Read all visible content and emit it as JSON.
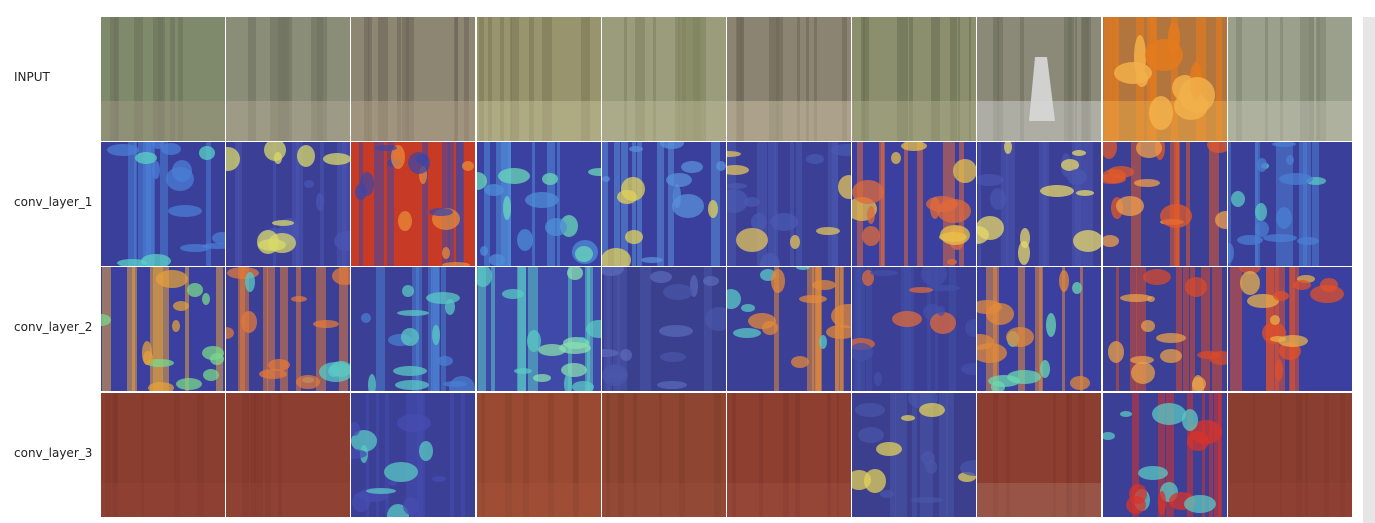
{
  "rows": [
    {
      "label": "INPUT",
      "key": "input"
    },
    {
      "label": "conv_layer_1",
      "key": "conv1"
    },
    {
      "label": "conv_layer_2",
      "key": "conv2"
    },
    {
      "label": "conv_layer_3",
      "key": "conv3"
    }
  ],
  "columns": 10,
  "tiles": {
    "input": [
      {
        "scene": "forest-trunks",
        "palette": [
          "#7f8a6c",
          "#6b735a",
          "#a39a86"
        ]
      },
      {
        "scene": "forest-path-bench",
        "palette": [
          "#8a8e79",
          "#6e725f",
          "#b3ab95"
        ]
      },
      {
        "scene": "dense-pines-sunrays",
        "palette": [
          "#8d8673",
          "#6e6658",
          "#b8a78c"
        ]
      },
      {
        "scene": "forest-light-path",
        "palette": [
          "#98956e",
          "#7b7a55",
          "#c9c39a"
        ]
      },
      {
        "scene": "mossy-forest",
        "palette": [
          "#9a9c7b",
          "#7f845e",
          "#c0bc9b"
        ]
      },
      {
        "scene": "tall-trees-looking-up",
        "palette": [
          "#8c8472",
          "#6f6758",
          "#d2c7ad"
        ]
      },
      {
        "scene": "swamp-canoe",
        "palette": [
          "#8b8f6e",
          "#6a7053",
          "#b0ae8a"
        ]
      },
      {
        "scene": "ghost-figure",
        "palette": [
          "#8b8a78",
          "#6e6e5e",
          "#d8d8d8"
        ]
      },
      {
        "scene": "forest-fire",
        "palette": [
          "#b3753e",
          "#e47a1c",
          "#f2b04a"
        ]
      },
      {
        "scene": "bright-trunks",
        "palette": [
          "#9aa08b",
          "#7d8470",
          "#c8c6b5"
        ]
      }
    ],
    "conv1": [
      {
        "scene": "heatmap",
        "palette": [
          "#3a3f9a",
          "#4b7fd6",
          "#5ad1c4"
        ]
      },
      {
        "scene": "heatmap",
        "palette": [
          "#3b3f96",
          "#4a56b3",
          "#d9d96a"
        ]
      },
      {
        "scene": "heatmap",
        "palette": [
          "#c73a26",
          "#3e45a6",
          "#e98a3a"
        ]
      },
      {
        "scene": "heatmap",
        "palette": [
          "#3b41a0",
          "#4f8ed8",
          "#6ad8b8"
        ]
      },
      {
        "scene": "heatmap",
        "palette": [
          "#3a3f9e",
          "#5a90da",
          "#e0d25a"
        ]
      },
      {
        "scene": "heatmap",
        "palette": [
          "#3b3f96",
          "#4a5ab0",
          "#e2c45a"
        ]
      },
      {
        "scene": "heatmap",
        "palette": [
          "#3b40a0",
          "#e06a3a",
          "#e8c04a"
        ]
      },
      {
        "scene": "heatmap",
        "palette": [
          "#3b3f96",
          "#4a56ad",
          "#e8d86a"
        ]
      },
      {
        "scene": "heatmap",
        "palette": [
          "#3b3f96",
          "#e25a2a",
          "#f0a04a"
        ]
      },
      {
        "scene": "heatmap",
        "palette": [
          "#3a3f9a",
          "#4a7fd2",
          "#5ac9c4"
        ]
      }
    ],
    "conv2": [
      {
        "scene": "heatmap",
        "palette": [
          "#3b40a0",
          "#e3a03a",
          "#7ad88a"
        ]
      },
      {
        "scene": "heatmap",
        "palette": [
          "#3b3f96",
          "#e27a3a",
          "#5ac9c4"
        ]
      },
      {
        "scene": "heatmap",
        "palette": [
          "#3b3f96",
          "#4a7fd2",
          "#5ac9c4"
        ]
      },
      {
        "scene": "heatmap",
        "palette": [
          "#3f4aa8",
          "#5ac9c4",
          "#8ae0b0"
        ]
      },
      {
        "scene": "heatmap",
        "palette": [
          "#3a3f8e",
          "#4a56a8",
          "#5a6ab8"
        ]
      },
      {
        "scene": "heatmap",
        "palette": [
          "#3b3f96",
          "#e28a3a",
          "#5ac9c4"
        ]
      },
      {
        "scene": "heatmap",
        "palette": [
          "#3b3f96",
          "#4450a8",
          "#e06a3a"
        ]
      },
      {
        "scene": "heatmap",
        "palette": [
          "#3b40a0",
          "#e28a3a",
          "#6ad8b0"
        ]
      },
      {
        "scene": "heatmap",
        "palette": [
          "#3b3f96",
          "#d84a2a",
          "#e9a04a"
        ]
      },
      {
        "scene": "heatmap",
        "palette": [
          "#3b40a0",
          "#e0502a",
          "#e8b04a"
        ]
      }
    ],
    "conv3": [
      {
        "scene": "flat",
        "palette": [
          "#8a3e30",
          "#7e3529",
          "#94483a"
        ]
      },
      {
        "scene": "flat",
        "palette": [
          "#8c3f31",
          "#7e3629",
          "#96493b"
        ]
      },
      {
        "scene": "heatmap",
        "palette": [
          "#3b3f96",
          "#454db0",
          "#5ac9c4"
        ]
      },
      {
        "scene": "flat",
        "palette": [
          "#9a4a32",
          "#86402c",
          "#a8573c"
        ]
      },
      {
        "scene": "flat",
        "palette": [
          "#8e4632",
          "#7e3a2a",
          "#9c5240"
        ]
      },
      {
        "scene": "flat",
        "palette": [
          "#8e3f30",
          "#7c3629",
          "#a25343"
        ]
      },
      {
        "scene": "heatmap",
        "palette": [
          "#3b3f8e",
          "#4a56a8",
          "#e2d25a"
        ]
      },
      {
        "scene": "flat",
        "palette": [
          "#8c3f31",
          "#7e3629",
          "#b07a70"
        ]
      },
      {
        "scene": "heatmap",
        "palette": [
          "#3b3f96",
          "#d8332a",
          "#5ac9c4"
        ]
      },
      {
        "scene": "flat",
        "palette": [
          "#8a3e30",
          "#7e3529",
          "#94483a"
        ]
      }
    ]
  }
}
